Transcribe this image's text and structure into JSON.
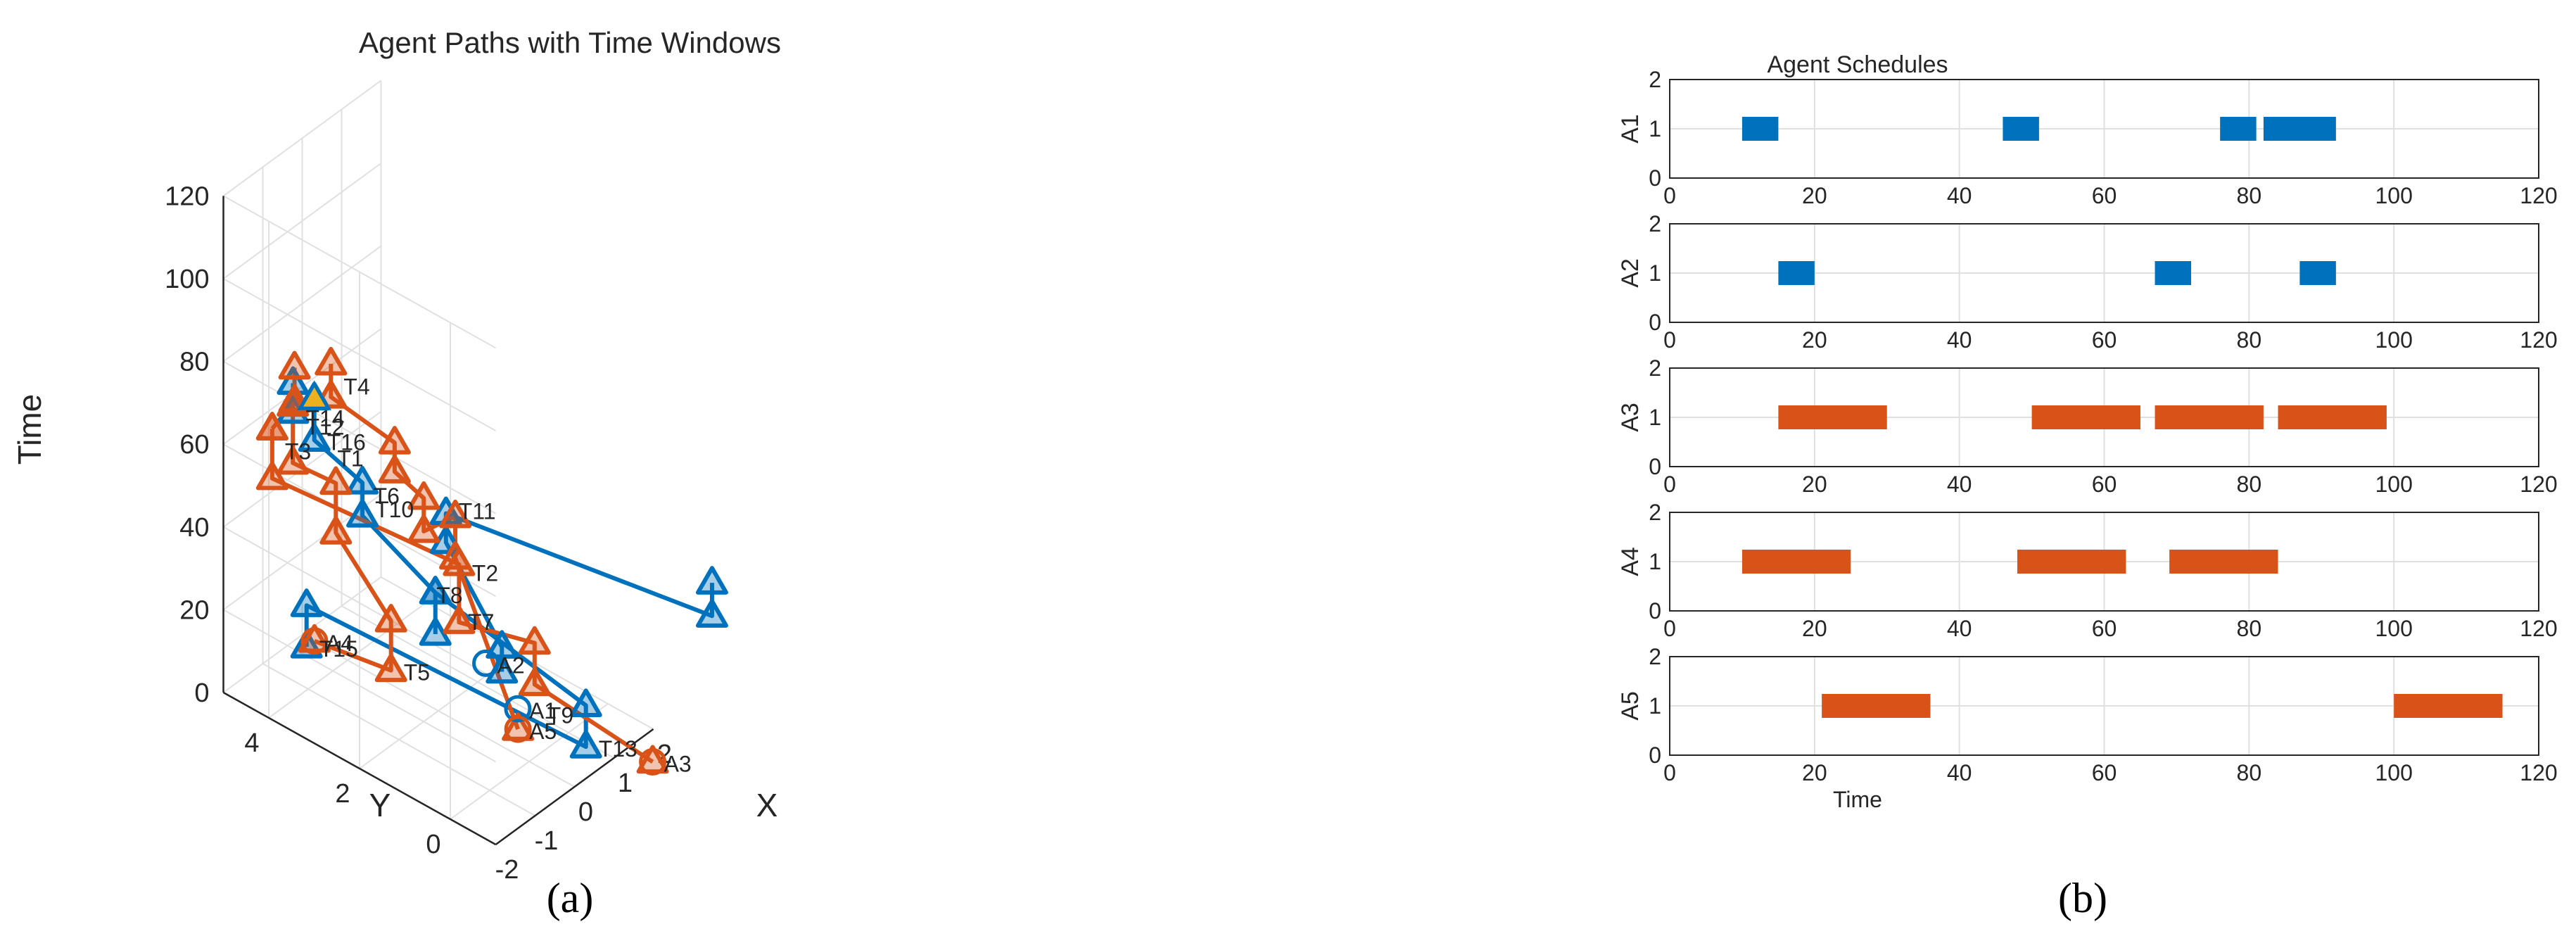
{
  "captions": {
    "a": "(a)",
    "b": "(b)"
  },
  "colors": {
    "blue": "#0072BD",
    "orange": "#D95319",
    "gold": "#EDB120",
    "grid": "#e0e0e0",
    "axis": "#262626"
  },
  "chart_data": [
    {
      "type": "scatter3d",
      "title": "Agent Paths with Time Windows",
      "xlabel": "X",
      "ylabel": "Y",
      "zlabel": "Time",
      "xlim": [
        -2,
        2
      ],
      "ylim": [
        -1,
        5
      ],
      "zlim": [
        0,
        120
      ],
      "xticks": [
        -2,
        -1,
        0,
        1,
        2
      ],
      "yticks": [
        0,
        2,
        4
      ],
      "zticks": [
        0,
        20,
        40,
        60,
        80,
        100,
        120
      ],
      "grid": true,
      "paths": [
        {
          "color": "blue",
          "points": [
            {
              "x": -0.35,
              "y": 4.6,
              "t": 2
            },
            {
              "x": -0.35,
              "y": 4.6,
              "t": 12
            },
            {
              "x": 0.75,
              "y": -0.6,
              "t": 2
            },
            {
              "x": 0.75,
              "y": -0.6,
              "t": 12
            },
            {
              "x": 0.5,
              "y": 2.5,
              "t": 22
            }
          ]
        },
        {
          "color": "blue",
          "points": [
            {
              "x": 0.5,
              "y": 2.5,
              "t": 12
            },
            {
              "x": 0.5,
              "y": 2.5,
              "t": 22
            },
            {
              "x": -1.72,
              "y": 2.18,
              "t": 58
            },
            {
              "x": -1.72,
              "y": 2.18,
              "t": 66
            },
            {
              "x": -2.63,
              "y": 2.45,
              "t": 81
            },
            {
              "x": -2.63,
              "y": 2.45,
              "t": 91
            },
            {
              "x": -1.5,
              "y": 3.9,
              "t": 71
            },
            {
              "x": -1.5,
              "y": 3.9,
              "t": 78
            }
          ]
        },
        {
          "color": "blue",
          "points": [
            {
              "x": 0.0,
              "y": 0.6,
              "t": 18
            },
            {
              "x": 0.0,
              "y": 0.6,
              "t": 24
            },
            {
              "x": -1.65,
              "y": 0.4,
              "t": 62
            },
            {
              "x": -1.65,
              "y": 0.4,
              "t": 69
            },
            {
              "x": 0.15,
              "y": -3.9,
              "t": 58
            },
            {
              "x": 0.15,
              "y": -3.9,
              "t": 66
            }
          ]
        },
        {
          "color": "orange",
          "points": [
            {
              "x": 1.35,
              "y": -1.55,
              "t": 0
            },
            {
              "x": 0.6,
              "y": 0.4,
              "t": 12
            },
            {
              "x": 0.6,
              "y": 0.4,
              "t": 22
            },
            {
              "x": -0.8,
              "y": 0.85,
              "t": 34
            },
            {
              "x": -0.8,
              "y": 0.85,
              "t": 48
            },
            {
              "x": -2.95,
              "y": 3.1,
              "t": 70
            },
            {
              "x": -2.95,
              "y": 3.1,
              "t": 82
            }
          ]
        },
        {
          "color": "orange",
          "points": [
            {
              "x": -0.15,
              "y": 4.6,
              "t": 2
            },
            {
              "x": -0.05,
              "y": 3.0,
              "t": 4
            },
            {
              "x": -0.05,
              "y": 3.0,
              "t": 16
            },
            {
              "x": -1.45,
              "y": 3.0,
              "t": 47
            },
            {
              "x": -1.45,
              "y": 3.0,
              "t": 59
            },
            {
              "x": -1.85,
              "y": 3.6,
              "t": 63
            },
            {
              "x": -1.85,
              "y": 3.6,
              "t": 77
            }
          ]
        },
        {
          "color": "orange",
          "points": [
            {
              "x": 0.35,
              "y": 0.55,
              "t": 2
            },
            {
              "x": -0.55,
              "y": 1.15,
              "t": 46
            },
            {
              "x": -0.55,
              "y": 1.15,
              "t": 56
            },
            {
              "x": -1.35,
              "y": 1.15,
              "t": 58
            },
            {
              "x": -1.35,
              "y": 1.15,
              "t": 66
            },
            {
              "x": -1.8,
              "y": 1.4,
              "t": 74
            },
            {
              "x": -1.8,
              "y": 1.4,
              "t": 81
            },
            {
              "x": -2.9,
              "y": 1.85,
              "t": 97
            },
            {
              "x": -2.9,
              "y": 1.85,
              "t": 105
            }
          ]
        },
        {
          "color": "orange",
          "points": [
            {
              "x": -2.95,
              "y": 3.1,
              "t": 82
            },
            {
              "x": -1.75,
              "y": 3.65,
              "t": 77
            },
            {
              "x": -1.75,
              "y": 3.65,
              "t": 85
            }
          ]
        }
      ],
      "circles": [
        {
          "label": "A1",
          "color": "blue",
          "x": 0.75,
          "y": 0.9,
          "t": 2
        },
        {
          "label": "A2",
          "color": "blue",
          "x": 0.4,
          "y": 1.3,
          "t": 13
        },
        {
          "label": "A3",
          "color": "orange",
          "x": 1.35,
          "y": -1.55,
          "t": 0
        },
        {
          "label": "A4",
          "color": "orange",
          "x": -0.15,
          "y": 4.6,
          "t": 2
        },
        {
          "label": "A5",
          "color": "orange",
          "x": 0.35,
          "y": 0.55,
          "t": 2
        }
      ],
      "gold_marker": {
        "x": -2.63,
        "y": 2.45,
        "t": 91
      },
      "annotations": [
        {
          "text": "T1",
          "x": -1.62,
          "y": 3.1,
          "t": 66
        },
        {
          "text": "T2",
          "x": -0.85,
          "y": 0.8,
          "t": 47
        },
        {
          "text": "T3",
          "x": -2.95,
          "y": 3.1,
          "t": 77
        },
        {
          "text": "T4",
          "x": -2.9,
          "y": 1.85,
          "t": 100
        },
        {
          "text": "T5",
          "x": -0.05,
          "y": 3.0,
          "t": 4
        },
        {
          "text": "T6",
          "x": -1.8,
          "y": 2.15,
          "t": 64
        },
        {
          "text": "T7",
          "x": -0.55,
          "y": 1.15,
          "t": 31
        },
        {
          "text": "T8",
          "x": -1.35,
          "y": 1.15,
          "t": 43
        },
        {
          "text": "T9",
          "x": 0.6,
          "y": 0.4,
          "t": 5
        },
        {
          "text": "T10",
          "x": -1.72,
          "y": 2.18,
          "t": 60
        },
        {
          "text": "T11",
          "x": -1.65,
          "y": 0.4,
          "t": 70
        },
        {
          "text": "T12",
          "x": -1.5,
          "y": 3.9,
          "t": 68
        },
        {
          "text": "T13",
          "x": 0.75,
          "y": -0.6,
          "t": 2
        },
        {
          "text": "T14",
          "x": -1.5,
          "y": 3.9,
          "t": 70
        },
        {
          "text": "T15",
          "x": -0.35,
          "y": 4.6,
          "t": 2
        },
        {
          "text": "T16",
          "x": -2.63,
          "y": 2.45,
          "t": 81
        }
      ]
    },
    {
      "type": "gantt",
      "title": "Agent Schedules",
      "xlabel": "Time",
      "xlim": [
        0,
        120
      ],
      "ylim": [
        0,
        2
      ],
      "xticks": [
        0,
        20,
        40,
        60,
        80,
        100,
        120
      ],
      "yticks": [
        0,
        1,
        2
      ],
      "grid": true,
      "rows": [
        {
          "name": "A1",
          "color": "blue",
          "intervals": [
            [
              10,
              15
            ],
            [
              46,
              51
            ],
            [
              76,
              81
            ],
            [
              82,
              92
            ]
          ]
        },
        {
          "name": "A2",
          "color": "blue",
          "intervals": [
            [
              15,
              20
            ],
            [
              67,
              72
            ],
            [
              87,
              92
            ]
          ]
        },
        {
          "name": "A3",
          "color": "orange",
          "intervals": [
            [
              15,
              30
            ],
            [
              50,
              65
            ],
            [
              67,
              82
            ],
            [
              84,
              99
            ]
          ]
        },
        {
          "name": "A4",
          "color": "orange",
          "intervals": [
            [
              10,
              25
            ],
            [
              48,
              63
            ],
            [
              69,
              84
            ]
          ]
        },
        {
          "name": "A5",
          "color": "orange",
          "intervals": [
            [
              21,
              36
            ],
            [
              100,
              115
            ]
          ]
        }
      ]
    }
  ]
}
